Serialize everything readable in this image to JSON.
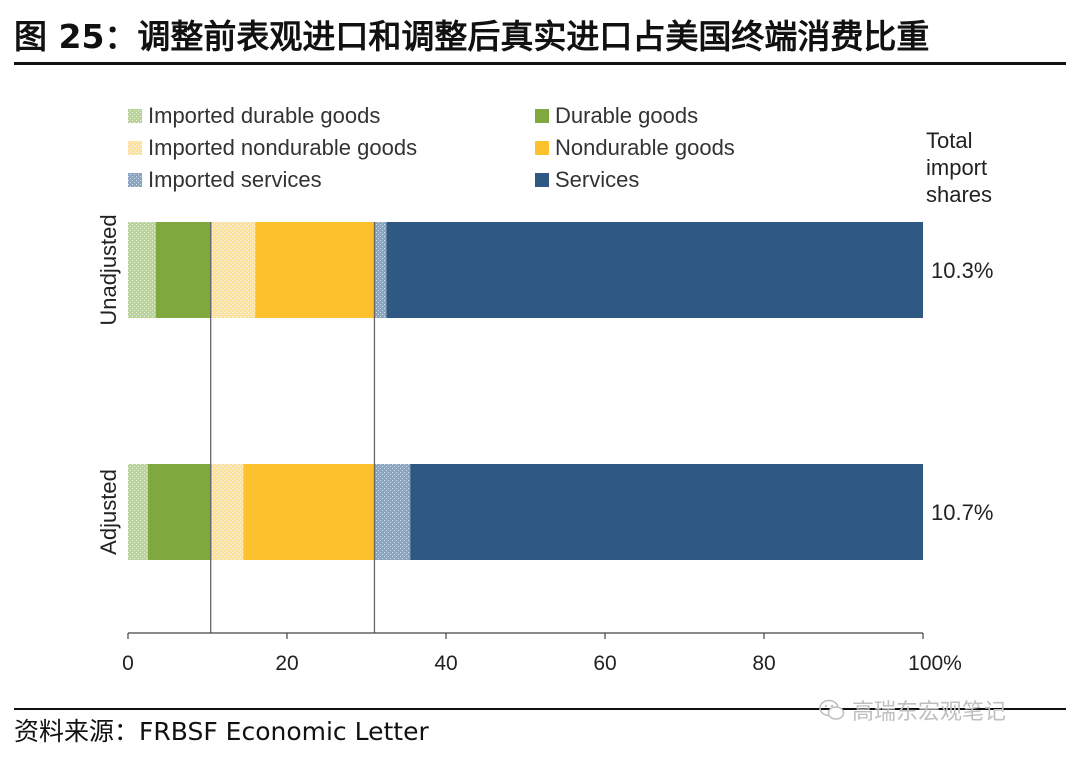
{
  "header": {
    "title": "图 25：调整前表观进口和调整后真实进口占美国终端消费比重"
  },
  "footer": {
    "source": "资料来源：FRBSF Economic Letter",
    "watermark": "高瑞东宏观笔记",
    "watermark_icon": "wechat-icon"
  },
  "chart_data": {
    "type": "bar",
    "orientation": "horizontal",
    "stacked": true,
    "categories": [
      "Unadjusted",
      "Adjusted"
    ],
    "xlim": [
      0,
      100
    ],
    "xticks": [
      "0",
      "20",
      "40",
      "60",
      "80",
      "100%"
    ],
    "xtick_values": [
      0,
      20,
      40,
      60,
      80,
      100
    ],
    "reference_lines": [
      10.4,
      31
    ],
    "series": [
      {
        "name": "Imported durable goods",
        "color": "#b9d39b",
        "pattern": true,
        "values": [
          3.5,
          2.5
        ]
      },
      {
        "name": "Durable goods",
        "color": "#7fa83f",
        "pattern": false,
        "values": [
          7.0,
          8.0
        ]
      },
      {
        "name": "Imported nondurable goods",
        "color": "#fbe39f",
        "pattern": true,
        "values": [
          5.5,
          4.0
        ]
      },
      {
        "name": "Nondurable goods",
        "color": "#fcc12c",
        "pattern": false,
        "values": [
          15.0,
          16.5
        ]
      },
      {
        "name": "Imported services",
        "color": "#8aa5bf",
        "pattern": true,
        "values": [
          1.5,
          4.5
        ]
      },
      {
        "name": "Services",
        "color": "#2f5883",
        "pattern": false,
        "values": [
          67.5,
          64.5
        ]
      }
    ],
    "total_import_shares": {
      "label": "Total import shares",
      "label_lines": [
        "Total",
        "import",
        "shares"
      ],
      "values": [
        "10.3%",
        "10.7%"
      ]
    },
    "legend_position": "top"
  }
}
